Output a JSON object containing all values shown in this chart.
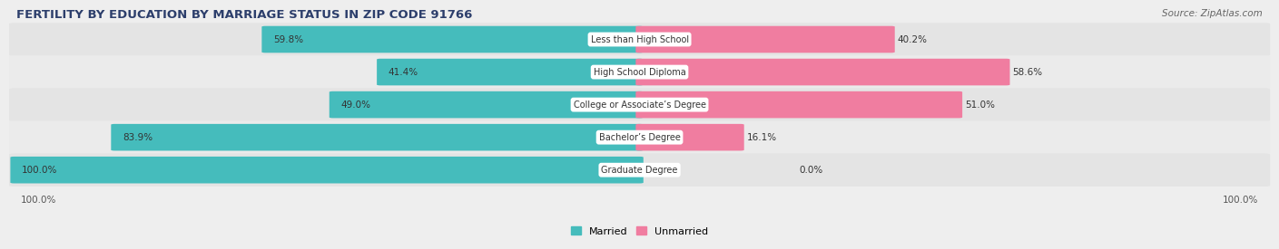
{
  "title": "FERTILITY BY EDUCATION BY MARRIAGE STATUS IN ZIP CODE 91766",
  "source": "Source: ZipAtlas.com",
  "categories": [
    "Less than High School",
    "High School Diploma",
    "College or Associate’s Degree",
    "Bachelor’s Degree",
    "Graduate Degree"
  ],
  "married": [
    59.8,
    41.4,
    49.0,
    83.9,
    100.0
  ],
  "unmarried": [
    40.2,
    58.6,
    51.0,
    16.1,
    0.0
  ],
  "married_color": "#45BCBC",
  "unmarried_color": "#F07DA0",
  "bg_color": "#eeeeee",
  "row_bg_even": "#e8e8e8",
  "row_bg_odd": "#f0f0f0",
  "title_color": "#2C3E6B",
  "axis_label_left": "100.0%",
  "axis_label_right": "100.0%",
  "legend_married": "Married",
  "legend_unmarried": "Unmarried"
}
